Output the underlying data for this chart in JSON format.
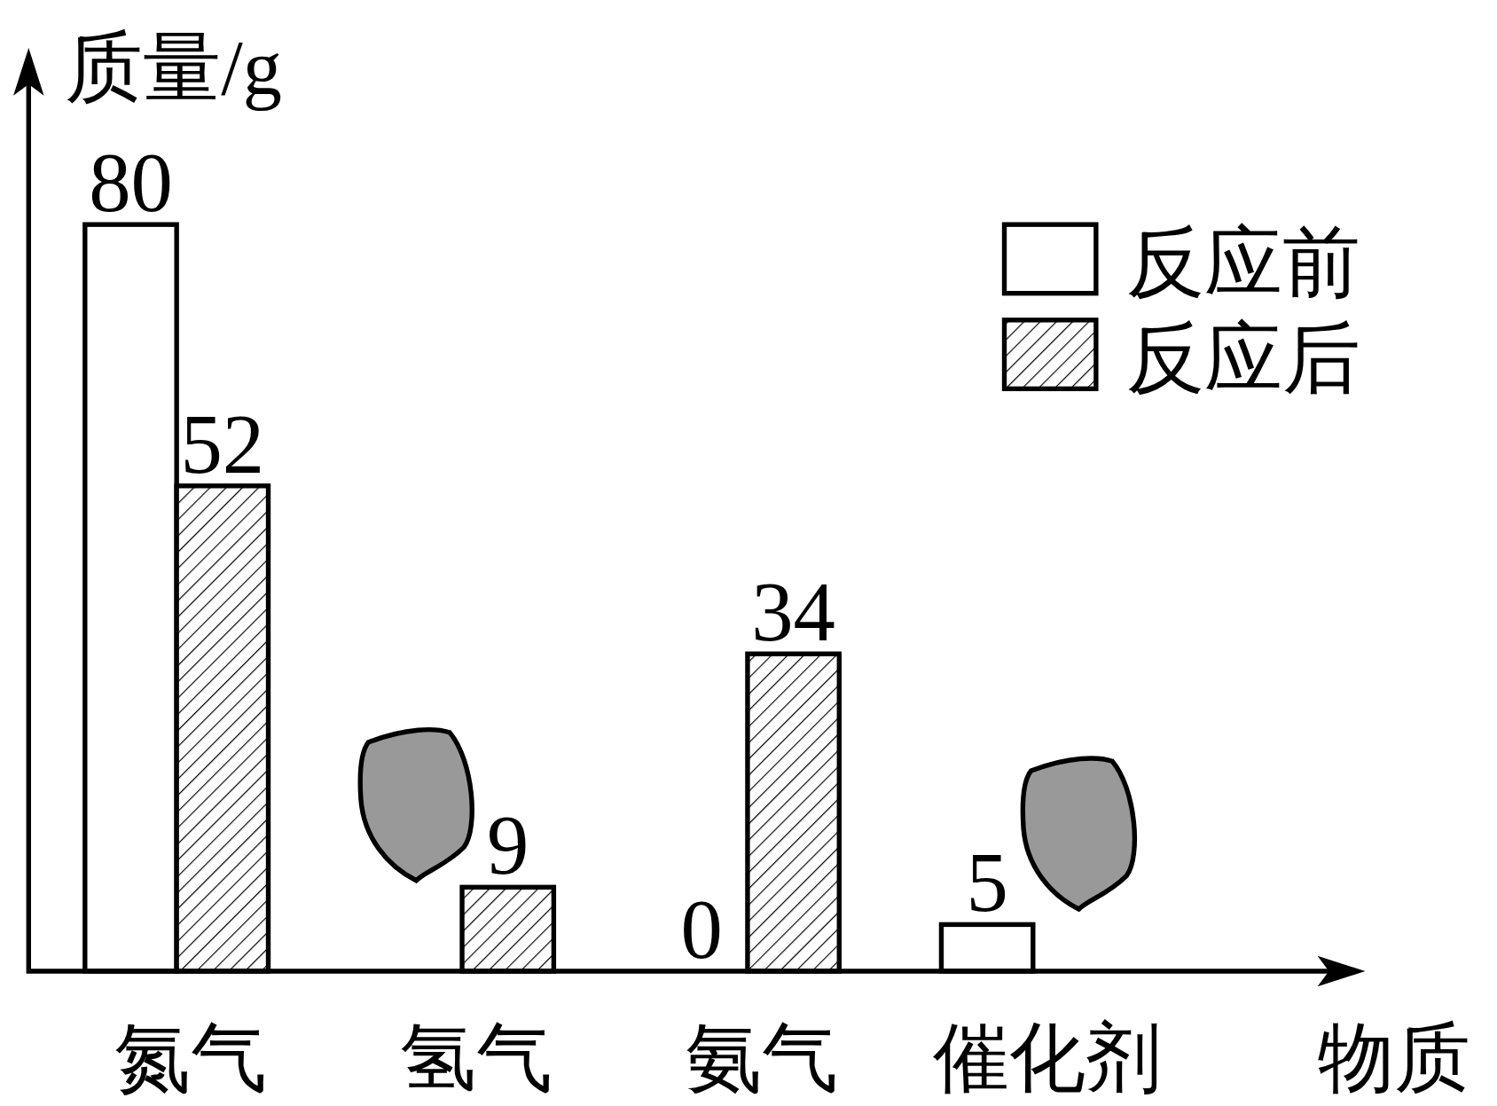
{
  "chart_data": {
    "type": "bar",
    "ylabel": "质量/g",
    "xlabel": "物质",
    "categories": [
      "氮气",
      "氢气",
      "氨气",
      "催化剂"
    ],
    "series": [
      {
        "name": "反应前",
        "color": "#ffffff",
        "values": [
          80,
          null,
          0,
          5
        ]
      },
      {
        "name": "反应后",
        "color": "#000000",
        "values": [
          52,
          9,
          34,
          null
        ]
      }
    ],
    "data_labels": true,
    "legend": "top right"
  }
}
